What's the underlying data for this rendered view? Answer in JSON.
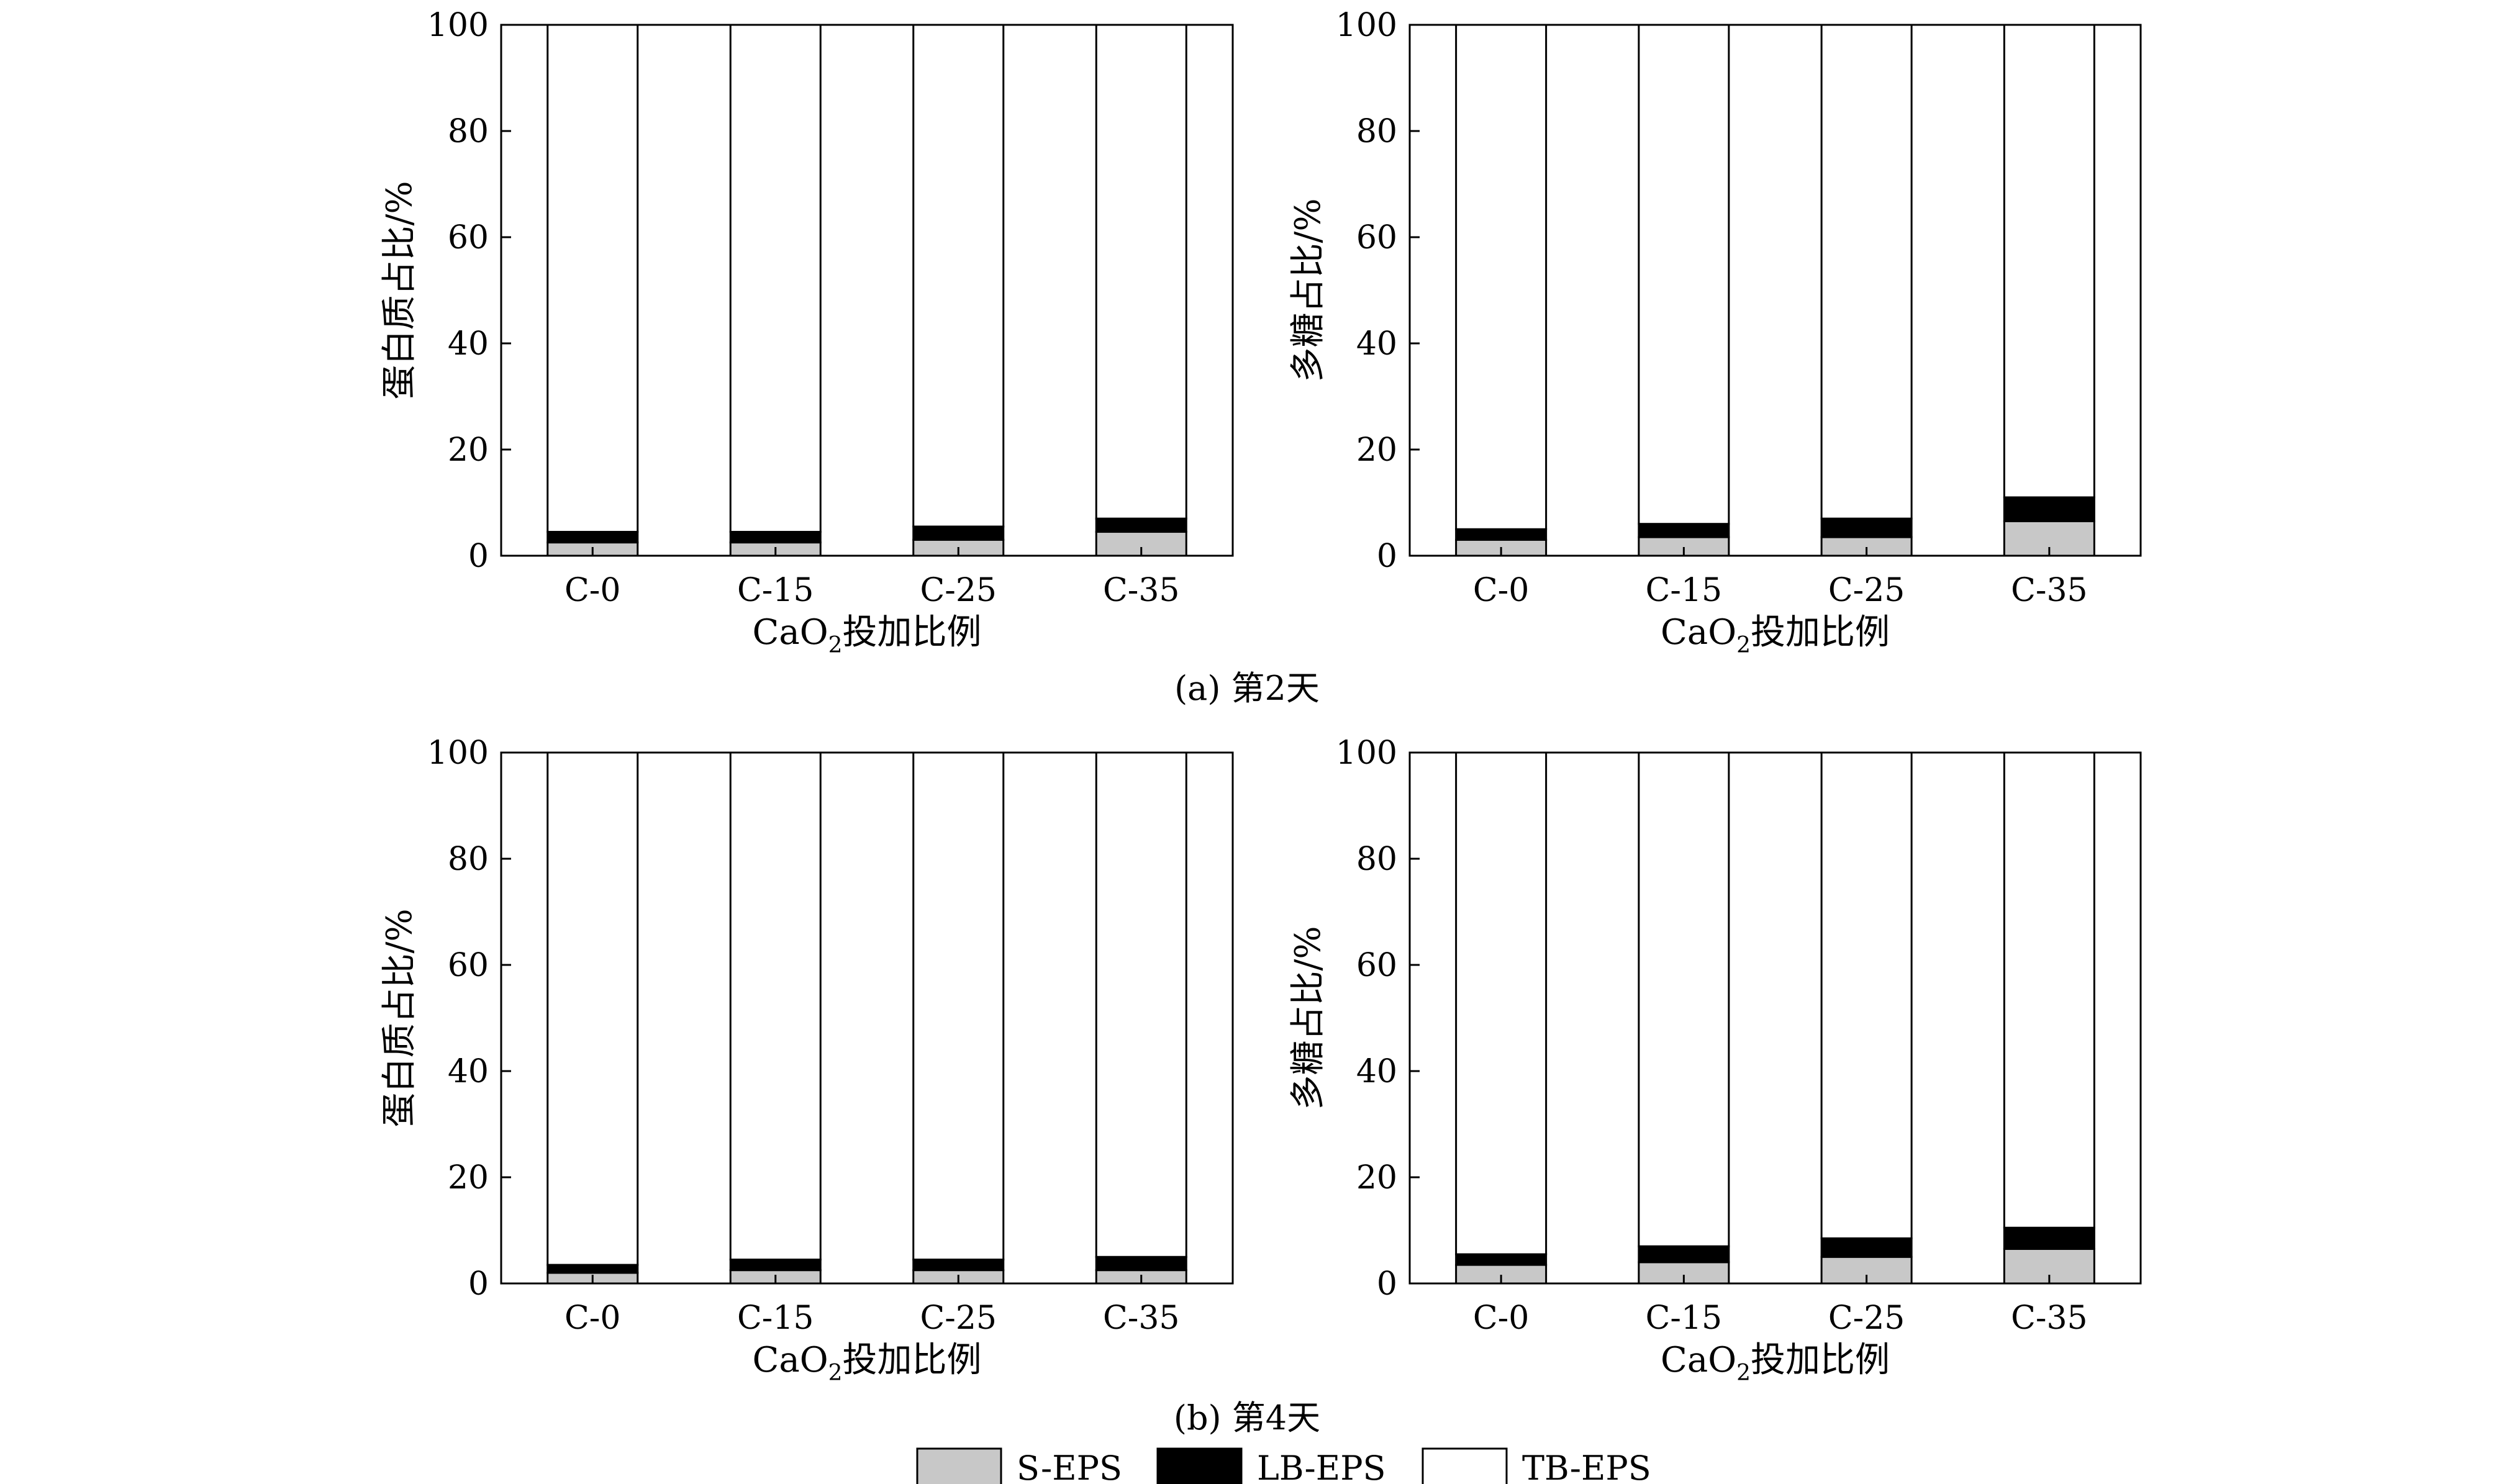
{
  "legend": [
    {
      "name": "S-EPS",
      "color": "#c8c8c8"
    },
    {
      "name": "LB-EPS",
      "color": "#000000"
    },
    {
      "name": "TB-EPS",
      "color": "#ffffff"
    }
  ],
  "captions": [
    "(a) 第2天",
    "(b) 第4天"
  ],
  "chart_data": [
    {
      "type": "bar",
      "stacked": true,
      "panel": "a",
      "categories": [
        "C-0",
        "C-15",
        "C-25",
        "C-35"
      ],
      "xlabel_prefix": "CaO",
      "xlabel_sub": "2",
      "xlabel_suffix": "投加比例",
      "ylabel": "蛋白质占比/%",
      "ylim": [
        0,
        100
      ],
      "yticks": [
        "0",
        "20",
        "40",
        "60",
        "80",
        "100"
      ],
      "series": [
        {
          "name": "S-EPS",
          "values": [
            2.5,
            2.5,
            3.0,
            4.5
          ]
        },
        {
          "name": "LB-EPS",
          "values": [
            2.0,
            2.0,
            2.5,
            2.5
          ]
        },
        {
          "name": "TB-EPS",
          "values": [
            95.5,
            95.5,
            94.5,
            93.0
          ]
        }
      ]
    },
    {
      "type": "bar",
      "stacked": true,
      "panel": "a",
      "categories": [
        "C-0",
        "C-15",
        "C-25",
        "C-35"
      ],
      "xlabel_prefix": "CaO",
      "xlabel_sub": "2",
      "xlabel_suffix": "投加比例",
      "ylabel": "多糖占比/%",
      "ylim": [
        0,
        100
      ],
      "yticks": [
        "0",
        "20",
        "40",
        "60",
        "80",
        "100"
      ],
      "series": [
        {
          "name": "S-EPS",
          "values": [
            3.0,
            3.5,
            3.5,
            6.5
          ]
        },
        {
          "name": "LB-EPS",
          "values": [
            2.0,
            2.5,
            3.5,
            4.5
          ]
        },
        {
          "name": "TB-EPS",
          "values": [
            95.0,
            94.0,
            93.0,
            89.0
          ]
        }
      ]
    },
    {
      "type": "bar",
      "stacked": true,
      "panel": "b",
      "categories": [
        "C-0",
        "C-15",
        "C-25",
        "C-35"
      ],
      "xlabel_prefix": "CaO",
      "xlabel_sub": "2",
      "xlabel_suffix": "投加比例",
      "ylabel": "蛋白质占比/%",
      "ylim": [
        0,
        100
      ],
      "yticks": [
        "0",
        "20",
        "40",
        "60",
        "80",
        "100"
      ],
      "series": [
        {
          "name": "S-EPS",
          "values": [
            2.0,
            2.5,
            2.5,
            2.5
          ]
        },
        {
          "name": "LB-EPS",
          "values": [
            1.5,
            2.0,
            2.0,
            2.5
          ]
        },
        {
          "name": "TB-EPS",
          "values": [
            96.5,
            95.5,
            95.5,
            95.0
          ]
        }
      ]
    },
    {
      "type": "bar",
      "stacked": true,
      "panel": "b",
      "categories": [
        "C-0",
        "C-15",
        "C-25",
        "C-35"
      ],
      "xlabel_prefix": "CaO",
      "xlabel_sub": "2",
      "xlabel_suffix": "投加比例",
      "ylabel": "多糖占比/%",
      "ylim": [
        0,
        100
      ],
      "yticks": [
        "0",
        "20",
        "40",
        "60",
        "80",
        "100"
      ],
      "series": [
        {
          "name": "S-EPS",
          "values": [
            3.5,
            4.0,
            5.0,
            6.5
          ]
        },
        {
          "name": "LB-EPS",
          "values": [
            2.0,
            3.0,
            3.5,
            4.0
          ]
        },
        {
          "name": "TB-EPS",
          "values": [
            94.5,
            93.0,
            91.5,
            89.5
          ]
        }
      ]
    }
  ]
}
